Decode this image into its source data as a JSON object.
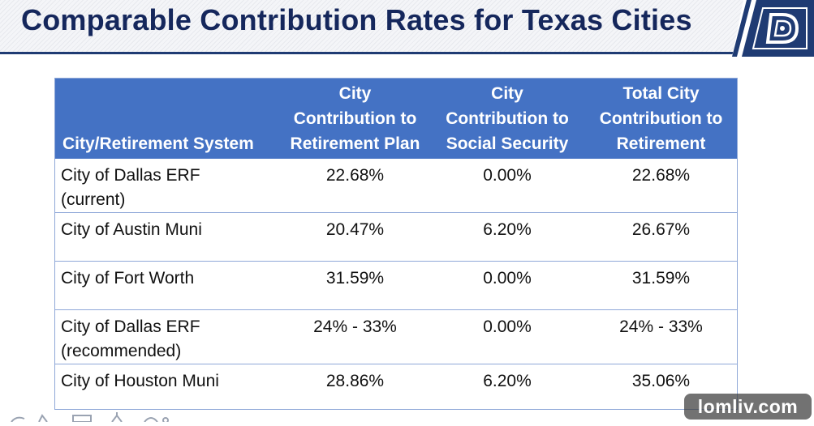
{
  "slide": {
    "title": "Comparable Contribution Rates for Texas Cities"
  },
  "logo": {
    "icon": "city-of-dallas-logo-icon",
    "color": "#1f3b73"
  },
  "table": {
    "headers": [
      {
        "lines": [
          "City/Retirement System"
        ]
      },
      {
        "lines": [
          "City",
          "Contribution to",
          "Retirement Plan"
        ]
      },
      {
        "lines": [
          "City",
          "Contribution to",
          "Social Security"
        ]
      },
      {
        "lines": [
          "Total City",
          "Contribution to",
          "Retirement"
        ]
      }
    ],
    "rows": [
      {
        "system": [
          "City of Dallas ERF",
          "(current)"
        ],
        "plan": "22.68%",
        "social_security": "0.00%",
        "total": "22.68%"
      },
      {
        "system": [
          "City of Austin Muni"
        ],
        "plan": "20.47%",
        "social_security": "6.20%",
        "total": "26.67%"
      },
      {
        "system": [
          "City of Fort Worth"
        ],
        "plan": "31.59%",
        "social_security": "0.00%",
        "total": "31.59%"
      },
      {
        "system": [
          "City of Dallas ERF",
          "(recommended)"
        ],
        "plan": "24% - 33%",
        "social_security": "0.00%",
        "total": "24% - 33%"
      },
      {
        "system": [
          "City of Houston Muni"
        ],
        "plan": "28.86%",
        "social_security": "6.20%",
        "total": "35.06%"
      }
    ],
    "header_color": "#4472c4",
    "border_color": "#8fa8d8"
  },
  "watermark": {
    "text": "lomliv.com"
  }
}
